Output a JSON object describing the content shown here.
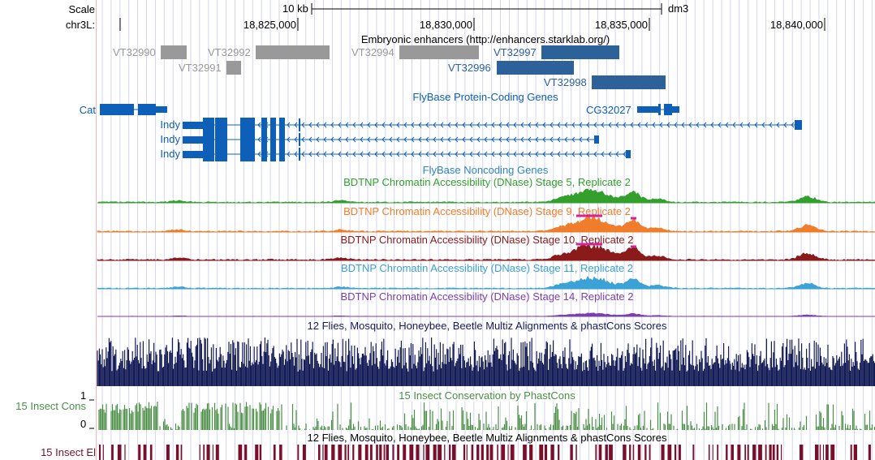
{
  "colors": {
    "gene_blue": "#0d5fb7",
    "enhancer_gray": "#999999",
    "enhancer_blue": "#2c6199",
    "noncoding_blue": "#2c86c5",
    "stage5": "#33a02c",
    "stage9": "#f07d2a",
    "stage10": "#8b1a1a",
    "stage11": "#3aa2d6",
    "stage14": "#7b3fb0",
    "peak_highlight": "#d6219a",
    "multiz": "#141c57",
    "cons": "#4a8f45",
    "elements": "#7a0f2b",
    "grid": "#d4d4ef",
    "side_line": "#f4b6b6"
  },
  "header": {
    "scale_label": "Scale",
    "scale_bar_text": "10 kb",
    "assembly": "dm3",
    "chrom_label": "chr3L:",
    "coords": [
      "18,825,000",
      "18,830,000",
      "18,835,000",
      "18,840,000"
    ]
  },
  "tracks": {
    "enhancers": {
      "title": "Embryonic enhancers (http://enhancers.starklab.org/)",
      "items": [
        {
          "name": "VT32990",
          "color": "gray",
          "row": 0
        },
        {
          "name": "VT32992",
          "color": "gray",
          "row": 0
        },
        {
          "name": "VT32994",
          "color": "gray",
          "row": 0
        },
        {
          "name": "VT32997",
          "color": "blue",
          "row": 0
        },
        {
          "name": "VT32991",
          "color": "gray",
          "row": 1
        },
        {
          "name": "VT32996",
          "color": "blue",
          "row": 1
        },
        {
          "name": "VT32998",
          "color": "blue",
          "row": 2
        }
      ]
    },
    "protein_coding": {
      "title": "FlyBase Protein-Coding Genes",
      "genes": [
        "Cat",
        "CG32027",
        "Indy",
        "Indy",
        "Indy"
      ]
    },
    "noncoding": {
      "title": "FlyBase Noncoding Genes"
    },
    "dnase": [
      {
        "title": "BDTNP Chromatin Accessibility (DNase) Stage 5, Replicate 2",
        "color_key": "stage5"
      },
      {
        "title": "BDTNP Chromatin Accessibility (DNase) Stage 9, Replicate 2",
        "color_key": "stage9"
      },
      {
        "title": "BDTNP Chromatin Accessibility (DNase) Stage 10, Replicate 2",
        "color_key": "stage10"
      },
      {
        "title": "BDTNP Chromatin Accessibility (DNase) Stage 11, Replicate 2",
        "color_key": "stage11"
      },
      {
        "title": "BDTNP Chromatin Accessibility (DNase) Stage 14, Replicate 2",
        "color_key": "stage14"
      }
    ],
    "multiz": {
      "title": "12 Flies, Mosquito, Honeybee, Beetle Multiz Alignments & phastCons Scores"
    },
    "insect_cons": {
      "side_label": "15 Insect Cons",
      "title": "15 Insect Conservation by PhastCons",
      "ymax": "1",
      "ymin": "0"
    },
    "insect_el": {
      "side_label": "15 Insect El",
      "title": "12 Flies, Mosquito, Honeybee, Beetle Multiz Alignments & phastCons Scores"
    }
  }
}
